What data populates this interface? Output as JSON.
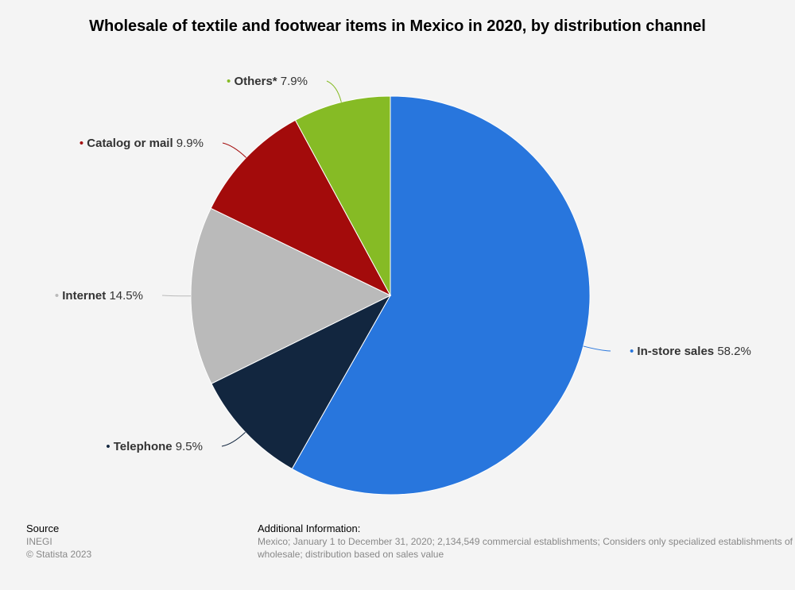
{
  "title": "Wholesale of textile and footwear items in Mexico in 2020, by distribution channel",
  "chart_data": {
    "type": "pie",
    "slices": [
      {
        "name": "In-store sales",
        "value": 58.2,
        "label": "58.2%",
        "color": "#2876dd"
      },
      {
        "name": "Telephone",
        "value": 9.5,
        "label": "9.5%",
        "color": "#12263f"
      },
      {
        "name": "Internet",
        "value": 14.5,
        "label": "14.5%",
        "color": "#bababa"
      },
      {
        "name": "Catalog or mail",
        "value": 9.9,
        "label": "9.9%",
        "color": "#a30b0b"
      },
      {
        "name": "Others*",
        "value": 7.9,
        "label": "7.9%",
        "color": "#86bb25"
      }
    ],
    "start": "top",
    "direction": "clockwise"
  },
  "footer": {
    "source_heading": "Source",
    "source_name": "INEGI",
    "copyright": "© Statista 2023",
    "additional_heading": "Additional Information:",
    "additional_text": "Mexico; January 1 to December 31, 2020; 2,134,549 commercial establishments; Considers only specialized establishments of wholesale; distribution based on sales value"
  }
}
